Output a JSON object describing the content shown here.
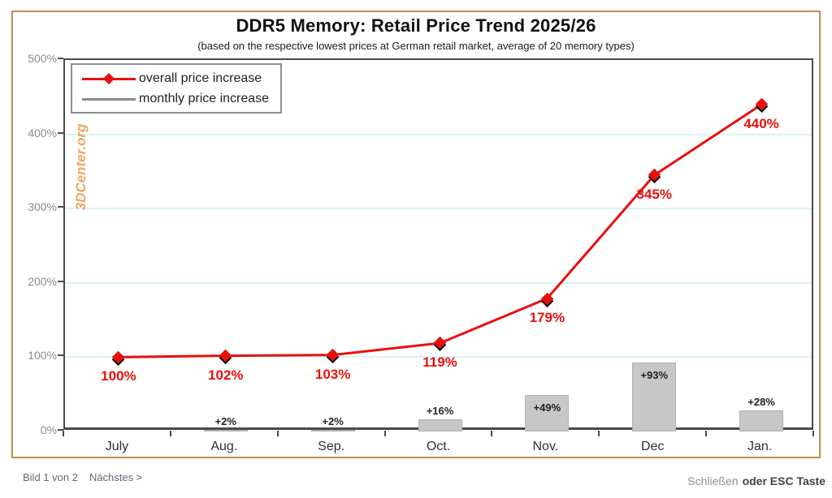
{
  "title": "DDR5 Memory: Retail Price Trend 2025/26",
  "subtitle": "(based on the respective lowest prices at German retail market, average of 20 memory types)",
  "watermark": "3DCenter.org",
  "legend": [
    {
      "label": "overall price increase",
      "color": "#e8100d",
      "marker": "diamond-line"
    },
    {
      "label": "monthly price increase",
      "color": "#8a8a8a",
      "marker": "line"
    }
  ],
  "chart_data": {
    "type": "line+bar",
    "categories": [
      "July",
      "Aug.",
      "Sep.",
      "Oct.",
      "Nov.",
      "Dec",
      "Jan."
    ],
    "series": [
      {
        "name": "overall price increase",
        "type": "line",
        "color": "#e8100d",
        "values": [
          100,
          102,
          103,
          119,
          179,
          345,
          440
        ],
        "labels": [
          "100%",
          "102%",
          "103%",
          "119%",
          "179%",
          "345%",
          "440%"
        ]
      },
      {
        "name": "monthly price increase",
        "type": "bar",
        "color": "#c7c7c7",
        "values": [
          null,
          2,
          2,
          16,
          49,
          93,
          28
        ],
        "labels": [
          "",
          "+2%",
          "+2%",
          "+16%",
          "+49%",
          "+93%",
          "+28%"
        ]
      }
    ],
    "ylim": [
      0,
      500
    ],
    "yticks": [
      {
        "value": 0,
        "label": "0%"
      },
      {
        "value": 100,
        "label": "100%"
      },
      {
        "value": 200,
        "label": "200%"
      },
      {
        "value": 300,
        "label": "300%"
      },
      {
        "value": 400,
        "label": "400%"
      },
      {
        "value": 500,
        "label": "500%"
      }
    ],
    "grid": true,
    "legend_position": "top-left"
  },
  "colors": {
    "line_red": "#e8100d",
    "bar_gray": "#c7c7c7",
    "grid_cyan": "#d8f4f7",
    "frame_tan": "#bf8e4e",
    "watermark_orange": "#f2a55f",
    "axis_dark": "#4a4a4a"
  },
  "footer": {
    "counter_text": "Bild 1 von 2",
    "next_link": "Nächstes >",
    "close_link": "Schließen",
    "esc_hint": "oder ESC Taste"
  }
}
